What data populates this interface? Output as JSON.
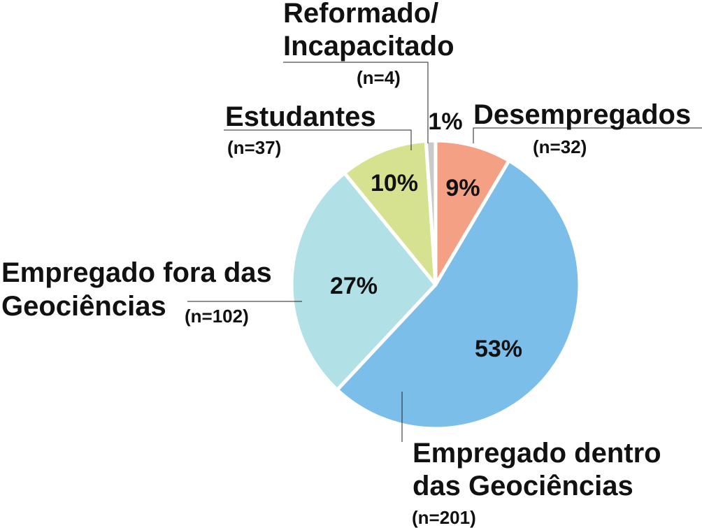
{
  "chart_data": {
    "type": "pie",
    "title": "",
    "start_angle_deg": 0,
    "direction": "clockwise",
    "slices": [
      {
        "key": "desempregados",
        "label_lines": [
          "Desempregados"
        ],
        "n_text": "(n=32)",
        "percent": 9,
        "percent_text": "9%",
        "value": 32,
        "color": "#F4A084"
      },
      {
        "key": "dentro",
        "label_lines": [
          "Empregado dentro",
          "das Geociências"
        ],
        "n_text": "(n=201)",
        "percent": 53,
        "percent_text": "53%",
        "value": 201,
        "color": "#7BBEE9"
      },
      {
        "key": "fora",
        "label_lines": [
          "Empregado fora das",
          "Geociências"
        ],
        "n_text": "(n=102)",
        "percent": 27,
        "percent_text": "27%",
        "value": 102,
        "color": "#B1E0E6"
      },
      {
        "key": "estudantes",
        "label_lines": [
          "Estudantes"
        ],
        "n_text": "(n=37)",
        "percent": 10,
        "percent_text": "10%",
        "value": 37,
        "color": "#D6E28F"
      },
      {
        "key": "reformado",
        "label_lines": [
          "Reformado/",
          "Incapacitado"
        ],
        "n_text": "(n=4)",
        "percent": 1,
        "percent_text": "1%",
        "value": 4,
        "color": "#C9C9C9"
      }
    ]
  }
}
